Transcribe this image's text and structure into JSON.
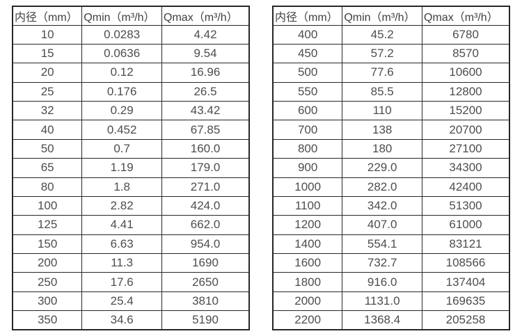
{
  "page": {
    "background_color": "#ffffff",
    "border_color": "#262626",
    "text_color": "#4d4d4d"
  },
  "tables": [
    {
      "name": "flow-spec-small-diameters",
      "headers": [
        "内径（mm）",
        "Qmin（m³/h）",
        "Qmax（m³/h）"
      ],
      "rows": [
        [
          "10",
          "0.0283",
          "4.42"
        ],
        [
          "15",
          "0.0636",
          "9.54"
        ],
        [
          "20",
          "0.12",
          "16.96"
        ],
        [
          "25",
          "0.176",
          "26.5"
        ],
        [
          "32",
          "0.29",
          "43.42"
        ],
        [
          "40",
          "0.452",
          "67.85"
        ],
        [
          "50",
          "0.7",
          "160.0"
        ],
        [
          "65",
          "1.19",
          "179.0"
        ],
        [
          "80",
          "1.8",
          "271.0"
        ],
        [
          "100",
          "2.82",
          "424.0"
        ],
        [
          "125",
          "4.41",
          "662.0"
        ],
        [
          "150",
          "6.63",
          "954.0"
        ],
        [
          "200",
          "11.3",
          "1690"
        ],
        [
          "250",
          "17.6",
          "2650"
        ],
        [
          "300",
          "25.4",
          "3810"
        ],
        [
          "350",
          "34.6",
          "5190"
        ]
      ]
    },
    {
      "name": "flow-spec-large-diameters",
      "headers": [
        "内径（mm）",
        "Qmin（m³/h）",
        "Qmax（m³/h）"
      ],
      "rows": [
        [
          "400",
          "45.2",
          "6780"
        ],
        [
          "450",
          "57.2",
          "8570"
        ],
        [
          "500",
          "77.6",
          "10600"
        ],
        [
          "550",
          "85.5",
          "12800"
        ],
        [
          "600",
          "110",
          "15200"
        ],
        [
          "700",
          "138",
          "20700"
        ],
        [
          "800",
          "180",
          "27100"
        ],
        [
          "900",
          "229.0",
          "34300"
        ],
        [
          "1000",
          "282.0",
          "42400"
        ],
        [
          "1100",
          "342.0",
          "51300"
        ],
        [
          "1200",
          "407.0",
          "61000"
        ],
        [
          "1400",
          "554.1",
          "83121"
        ],
        [
          "1600",
          "732.7",
          "108566"
        ],
        [
          "1800",
          "916.0",
          "137404"
        ],
        [
          "2000",
          "1131.0",
          "169635"
        ],
        [
          "2200",
          "1368.4",
          "205258"
        ]
      ]
    }
  ]
}
